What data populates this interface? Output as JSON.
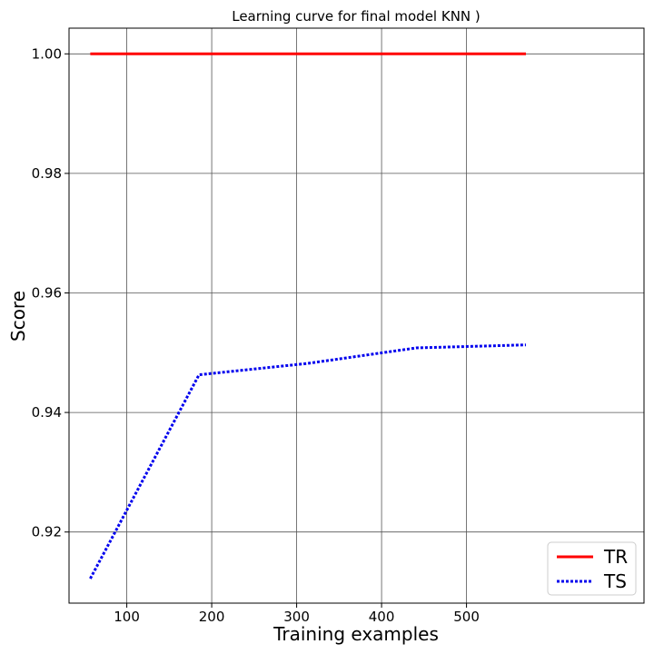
{
  "chart_data": {
    "type": "line",
    "title": "Learning curve for final model KNN )",
    "xlabel": "Training examples",
    "ylabel": "Score",
    "xlim": [
      32,
      709
    ],
    "ylim": [
      0.9081,
      1.0043
    ],
    "xticks": [
      100,
      200,
      300,
      400,
      500
    ],
    "yticks": [
      0.92,
      0.94,
      0.96,
      0.98,
      1.0
    ],
    "xtick_labels": [
      "100",
      "200",
      "300",
      "400",
      "500"
    ],
    "ytick_labels": [
      "0.92",
      "0.94",
      "0.96",
      "0.98",
      "1.00"
    ],
    "grid": true,
    "legend_position": "bottom-right",
    "series": [
      {
        "name": "TR",
        "color": "#ff0000",
        "style": "solid",
        "x": [
          57,
          185,
          313,
          441,
          570
        ],
        "y": [
          1.0,
          1.0,
          1.0,
          1.0,
          1.0
        ]
      },
      {
        "name": "TS",
        "color": "#0000ee",
        "style": "dotted",
        "x": [
          57,
          185,
          313,
          441,
          570
        ],
        "y": [
          0.9122,
          0.9463,
          0.9482,
          0.9508,
          0.9513
        ]
      }
    ]
  }
}
